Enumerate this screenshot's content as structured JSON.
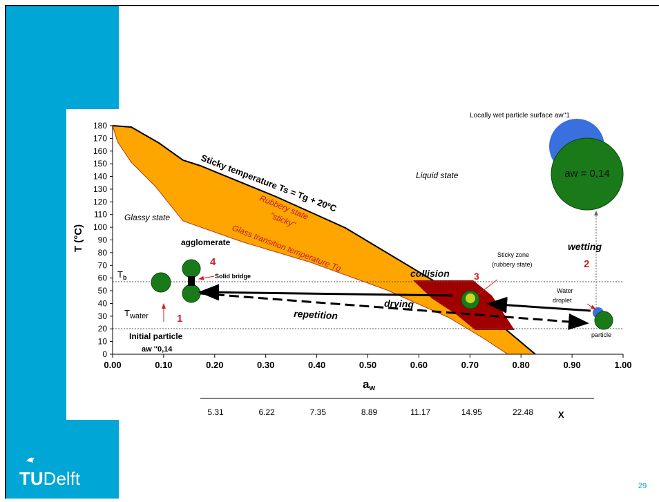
{
  "figure": {
    "y_axis": {
      "label": "T (°C)",
      "ticks": [
        "0",
        "10",
        "20",
        "30",
        "40",
        "50",
        "60",
        "70",
        "80",
        "90",
        "100",
        "110",
        "120",
        "130",
        "140",
        "150",
        "160",
        "170",
        "180"
      ]
    },
    "x_axis": {
      "label": "a",
      "label_sub": "w",
      "ticks": [
        "0.00",
        "0.10",
        "0.20",
        "0.30",
        "0.40",
        "0.50",
        "0.60",
        "0.70",
        "0.80",
        "0.90",
        "1.00"
      ]
    },
    "x2_axis": {
      "label": "X",
      "ticks": [
        "5.31",
        "6.22",
        "7.35",
        "8.89",
        "11.17",
        "14.95",
        "22.48"
      ]
    },
    "annotations": {
      "wet_surface": "Locally wet particle surface aw''1",
      "aw_big": "aw = 0,14",
      "sticky_temp": "Sticky temperature Ts = Tg + 20ºC",
      "liquid": "Liquid state",
      "rubbery": "Rubbery state",
      "sticky": "\"sticky\"",
      "glass_transition": "Glass transition temperature Tg",
      "glassy": "Glassy state",
      "agglomerate": "agglomerate",
      "step4": "4",
      "solid_bridge": "Solid bridge",
      "tb": "T",
      "tb_sub": "b",
      "twater": "T",
      "twater_sub": "water",
      "step1": "1",
      "initial": "Initial particle",
      "initial_aw": "aw ''0,14",
      "collision": "collision",
      "step3": "3",
      "sticky_zone": "Sticky zone",
      "sticky_zone2": "(rubbery state)",
      "drying": "drying",
      "repetition": "repetition",
      "wetting": "wetting",
      "step2": "2",
      "water": "Water",
      "droplet": "droplet",
      "particle": "particle"
    }
  },
  "footer": {
    "logo_bold": "TU",
    "logo_text": "Delft",
    "page": "29"
  }
}
